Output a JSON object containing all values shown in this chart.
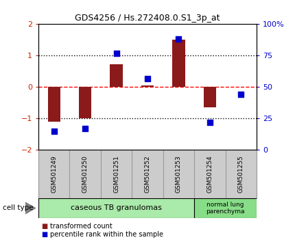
{
  "title": "GDS4256 / Hs.272408.0.S1_3p_at",
  "samples": [
    "GSM501249",
    "GSM501250",
    "GSM501251",
    "GSM501252",
    "GSM501253",
    "GSM501254",
    "GSM501255"
  ],
  "transformed_count": [
    -1.1,
    -1.0,
    0.72,
    0.05,
    1.5,
    -0.65,
    0.02
  ],
  "percentile_rank": [
    15,
    17,
    77,
    57,
    88,
    22,
    44
  ],
  "bar_color": "#8B1A1A",
  "dot_color": "#0000CD",
  "ylim_left": [
    -2,
    2
  ],
  "ylim_right": [
    0,
    100
  ],
  "yticks_left": [
    -2,
    -1,
    0,
    1,
    2
  ],
  "yticks_right": [
    0,
    25,
    50,
    75,
    100
  ],
  "yticklabels_right": [
    "0",
    "25",
    "50",
    "75",
    "100%"
  ],
  "hline_color": "#FF0000",
  "dotted_lines_black": [
    -1,
    1
  ],
  "dotted_line_red": 0,
  "cell_types": [
    {
      "label": "caseous TB granulomas",
      "n_samples": 5,
      "color": "#AAEAAA"
    },
    {
      "label": "normal lung\nparenchyma",
      "n_samples": 2,
      "color": "#88DD88"
    }
  ],
  "cell_type_label": "cell type",
  "legend_items": [
    {
      "label": "transformed count",
      "color": "#8B1A1A"
    },
    {
      "label": "percentile rank within the sample",
      "color": "#0000CD"
    }
  ],
  "bar_width": 0.4,
  "dot_size": 40,
  "background_color": "#FFFFFF",
  "plot_bg_color": "#FFFFFF",
  "tick_color_left": "#CC2200",
  "tick_color_right": "#0000CC",
  "label_area_color": "#CCCCCC",
  "label_area_border": "#999999",
  "title_fontsize": 9,
  "tick_fontsize": 8,
  "sample_fontsize": 6.5
}
